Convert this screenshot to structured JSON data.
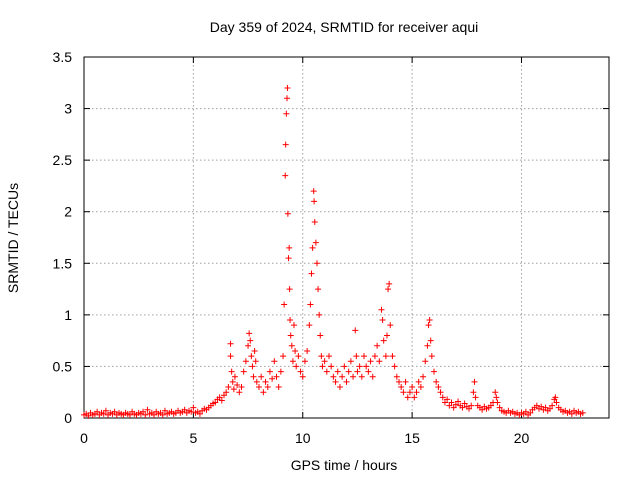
{
  "chart_data": {
    "type": "scatter",
    "title": "Day 359 of 2024, SRMTID for receiver aqui",
    "xlabel": "GPS time / hours",
    "ylabel": "SRMTID / TECUs",
    "xlim": [
      0,
      24
    ],
    "ylim": [
      0,
      3.5
    ],
    "xticks": [
      "0",
      "5",
      "10",
      "15",
      "20"
    ],
    "yticks": [
      "0",
      "0.5",
      "1",
      "1.5",
      "2",
      "2.5",
      "3",
      "3.5"
    ],
    "grid": true,
    "marker": "+",
    "series": [
      {
        "name": "SRMTID",
        "color": "#ff0000",
        "points": [
          [
            0.0,
            0.03
          ],
          [
            0.1,
            0.04
          ],
          [
            0.2,
            0.02
          ],
          [
            0.3,
            0.05
          ],
          [
            0.4,
            0.03
          ],
          [
            0.5,
            0.04
          ],
          [
            0.6,
            0.06
          ],
          [
            0.7,
            0.03
          ],
          [
            0.8,
            0.05
          ],
          [
            0.9,
            0.04
          ],
          [
            1.0,
            0.07
          ],
          [
            1.1,
            0.03
          ],
          [
            1.2,
            0.05
          ],
          [
            1.3,
            0.04
          ],
          [
            1.4,
            0.06
          ],
          [
            1.5,
            0.03
          ],
          [
            1.6,
            0.05
          ],
          [
            1.7,
            0.04
          ],
          [
            1.8,
            0.03
          ],
          [
            1.9,
            0.05
          ],
          [
            2.0,
            0.04
          ],
          [
            2.1,
            0.03
          ],
          [
            2.2,
            0.06
          ],
          [
            2.3,
            0.04
          ],
          [
            2.4,
            0.03
          ],
          [
            2.5,
            0.05
          ],
          [
            2.6,
            0.04
          ],
          [
            2.7,
            0.06
          ],
          [
            2.8,
            0.03
          ],
          [
            2.9,
            0.08
          ],
          [
            3.0,
            0.04
          ],
          [
            3.1,
            0.05
          ],
          [
            3.2,
            0.03
          ],
          [
            3.3,
            0.06
          ],
          [
            3.4,
            0.04
          ],
          [
            3.5,
            0.05
          ],
          [
            3.6,
            0.03
          ],
          [
            3.7,
            0.07
          ],
          [
            3.8,
            0.04
          ],
          [
            3.9,
            0.05
          ],
          [
            4.0,
            0.06
          ],
          [
            4.1,
            0.04
          ],
          [
            4.2,
            0.05
          ],
          [
            4.3,
            0.07
          ],
          [
            4.4,
            0.05
          ],
          [
            4.5,
            0.06
          ],
          [
            4.6,
            0.08
          ],
          [
            4.7,
            0.05
          ],
          [
            4.8,
            0.07
          ],
          [
            4.9,
            0.06
          ],
          [
            5.0,
            0.1
          ],
          [
            5.1,
            0.05
          ],
          [
            5.2,
            0.06
          ],
          [
            5.3,
            0.04
          ],
          [
            5.4,
            0.07
          ],
          [
            5.5,
            0.09
          ],
          [
            5.6,
            0.08
          ],
          [
            5.7,
            0.1
          ],
          [
            5.8,
            0.12
          ],
          [
            5.9,
            0.14
          ],
          [
            6.0,
            0.15
          ],
          [
            6.1,
            0.18
          ],
          [
            6.2,
            0.2
          ],
          [
            6.3,
            0.17
          ],
          [
            6.4,
            0.22
          ],
          [
            6.5,
            0.25
          ],
          [
            6.6,
            0.3
          ],
          [
            6.7,
            0.72
          ],
          [
            6.7,
            0.6
          ],
          [
            6.75,
            0.45
          ],
          [
            6.8,
            0.35
          ],
          [
            6.85,
            0.28
          ],
          [
            6.9,
            0.4
          ],
          [
            7.0,
            0.32
          ],
          [
            7.1,
            0.25
          ],
          [
            7.2,
            0.3
          ],
          [
            7.3,
            0.45
          ],
          [
            7.4,
            0.55
          ],
          [
            7.5,
            0.7
          ],
          [
            7.55,
            0.82
          ],
          [
            7.6,
            0.75
          ],
          [
            7.65,
            0.6
          ],
          [
            7.7,
            0.5
          ],
          [
            7.75,
            0.4
          ],
          [
            7.8,
            0.65
          ],
          [
            7.85,
            0.55
          ],
          [
            7.9,
            0.35
          ],
          [
            8.0,
            0.3
          ],
          [
            8.1,
            0.4
          ],
          [
            8.2,
            0.25
          ],
          [
            8.3,
            0.35
          ],
          [
            8.4,
            0.3
          ],
          [
            8.5,
            0.45
          ],
          [
            8.6,
            0.38
          ],
          [
            8.7,
            0.55
          ],
          [
            8.8,
            0.4
          ],
          [
            8.9,
            0.3
          ],
          [
            9.0,
            0.45
          ],
          [
            9.1,
            0.6
          ],
          [
            9.15,
            1.1
          ],
          [
            9.2,
            2.35
          ],
          [
            9.22,
            2.65
          ],
          [
            9.25,
            2.95
          ],
          [
            9.28,
            3.1
          ],
          [
            9.3,
            3.2
          ],
          [
            9.32,
            1.98
          ],
          [
            9.35,
            1.55
          ],
          [
            9.38,
            1.65
          ],
          [
            9.4,
            1.25
          ],
          [
            9.42,
            0.95
          ],
          [
            9.45,
            0.8
          ],
          [
            9.5,
            0.7
          ],
          [
            9.55,
            0.55
          ],
          [
            9.6,
            0.9
          ],
          [
            9.65,
            0.65
          ],
          [
            9.7,
            0.5
          ],
          [
            9.8,
            0.6
          ],
          [
            9.9,
            0.45
          ],
          [
            10.0,
            0.4
          ],
          [
            10.1,
            0.55
          ],
          [
            10.2,
            0.65
          ],
          [
            10.3,
            0.9
          ],
          [
            10.35,
            1.1
          ],
          [
            10.4,
            1.4
          ],
          [
            10.45,
            1.65
          ],
          [
            10.5,
            2.2
          ],
          [
            10.52,
            2.1
          ],
          [
            10.55,
            1.9
          ],
          [
            10.6,
            1.7
          ],
          [
            10.65,
            1.5
          ],
          [
            10.7,
            1.25
          ],
          [
            10.75,
            1.0
          ],
          [
            10.8,
            0.8
          ],
          [
            10.85,
            0.6
          ],
          [
            10.9,
            0.5
          ],
          [
            11.0,
            0.55
          ],
          [
            11.1,
            0.45
          ],
          [
            11.2,
            0.6
          ],
          [
            11.3,
            0.5
          ],
          [
            11.4,
            0.4
          ],
          [
            11.5,
            0.35
          ],
          [
            11.6,
            0.45
          ],
          [
            11.7,
            0.3
          ],
          [
            11.8,
            0.4
          ],
          [
            11.9,
            0.5
          ],
          [
            12.0,
            0.35
          ],
          [
            12.1,
            0.45
          ],
          [
            12.2,
            0.55
          ],
          [
            12.3,
            0.4
          ],
          [
            12.4,
            0.85
          ],
          [
            12.45,
            0.6
          ],
          [
            12.5,
            0.45
          ],
          [
            12.6,
            0.5
          ],
          [
            12.7,
            0.4
          ],
          [
            12.8,
            0.6
          ],
          [
            12.9,
            0.5
          ],
          [
            13.0,
            0.45
          ],
          [
            13.1,
            0.55
          ],
          [
            13.2,
            0.4
          ],
          [
            13.3,
            0.6
          ],
          [
            13.4,
            0.7
          ],
          [
            13.5,
            0.55
          ],
          [
            13.6,
            1.05
          ],
          [
            13.65,
            0.95
          ],
          [
            13.7,
            0.75
          ],
          [
            13.8,
            0.6
          ],
          [
            13.85,
            0.8
          ],
          [
            13.9,
            1.25
          ],
          [
            13.95,
            1.3
          ],
          [
            14.0,
            0.9
          ],
          [
            14.1,
            0.6
          ],
          [
            14.2,
            0.5
          ],
          [
            14.3,
            0.4
          ],
          [
            14.4,
            0.35
          ],
          [
            14.5,
            0.3
          ],
          [
            14.6,
            0.25
          ],
          [
            14.7,
            0.35
          ],
          [
            14.8,
            0.2
          ],
          [
            14.9,
            0.25
          ],
          [
            15.0,
            0.3
          ],
          [
            15.1,
            0.2
          ],
          [
            15.2,
            0.25
          ],
          [
            15.3,
            0.35
          ],
          [
            15.4,
            0.3
          ],
          [
            15.5,
            0.4
          ],
          [
            15.6,
            0.55
          ],
          [
            15.7,
            0.7
          ],
          [
            15.75,
            0.9
          ],
          [
            15.8,
            0.95
          ],
          [
            15.85,
            0.75
          ],
          [
            15.9,
            0.6
          ],
          [
            16.0,
            0.45
          ],
          [
            16.1,
            0.35
          ],
          [
            16.2,
            0.3
          ],
          [
            16.3,
            0.25
          ],
          [
            16.4,
            0.2
          ],
          [
            16.5,
            0.15
          ],
          [
            16.6,
            0.18
          ],
          [
            16.7,
            0.12
          ],
          [
            16.8,
            0.15
          ],
          [
            16.9,
            0.1
          ],
          [
            17.0,
            0.13
          ],
          [
            17.1,
            0.16
          ],
          [
            17.2,
            0.12
          ],
          [
            17.3,
            0.1
          ],
          [
            17.4,
            0.14
          ],
          [
            17.5,
            0.11
          ],
          [
            17.6,
            0.09
          ],
          [
            17.7,
            0.12
          ],
          [
            17.8,
            0.25
          ],
          [
            17.85,
            0.35
          ],
          [
            17.9,
            0.2
          ],
          [
            18.0,
            0.12
          ],
          [
            18.1,
            0.1
          ],
          [
            18.2,
            0.08
          ],
          [
            18.3,
            0.11
          ],
          [
            18.4,
            0.09
          ],
          [
            18.5,
            0.1
          ],
          [
            18.6,
            0.12
          ],
          [
            18.7,
            0.15
          ],
          [
            18.8,
            0.25
          ],
          [
            18.85,
            0.2
          ],
          [
            18.9,
            0.15
          ],
          [
            19.0,
            0.1
          ],
          [
            19.1,
            0.07
          ],
          [
            19.2,
            0.06
          ],
          [
            19.3,
            0.05
          ],
          [
            19.4,
            0.07
          ],
          [
            19.5,
            0.05
          ],
          [
            19.6,
            0.06
          ],
          [
            19.7,
            0.04
          ],
          [
            19.8,
            0.05
          ],
          [
            19.9,
            0.03
          ],
          [
            20.0,
            0.05
          ],
          [
            20.1,
            0.04
          ],
          [
            20.2,
            0.06
          ],
          [
            20.3,
            0.03
          ],
          [
            20.4,
            0.05
          ],
          [
            20.5,
            0.08
          ],
          [
            20.6,
            0.1
          ],
          [
            20.7,
            0.12
          ],
          [
            20.8,
            0.09
          ],
          [
            20.9,
            0.11
          ],
          [
            21.0,
            0.08
          ],
          [
            21.1,
            0.1
          ],
          [
            21.2,
            0.07
          ],
          [
            21.3,
            0.09
          ],
          [
            21.4,
            0.12
          ],
          [
            21.5,
            0.18
          ],
          [
            21.55,
            0.2
          ],
          [
            21.6,
            0.15
          ],
          [
            21.7,
            0.1
          ],
          [
            21.8,
            0.08
          ],
          [
            21.9,
            0.06
          ],
          [
            22.0,
            0.07
          ],
          [
            22.1,
            0.05
          ],
          [
            22.2,
            0.06
          ],
          [
            22.3,
            0.04
          ],
          [
            22.4,
            0.07
          ],
          [
            22.5,
            0.05
          ],
          [
            22.6,
            0.06
          ],
          [
            22.7,
            0.04
          ],
          [
            22.8,
            0.05
          ]
        ]
      }
    ]
  }
}
